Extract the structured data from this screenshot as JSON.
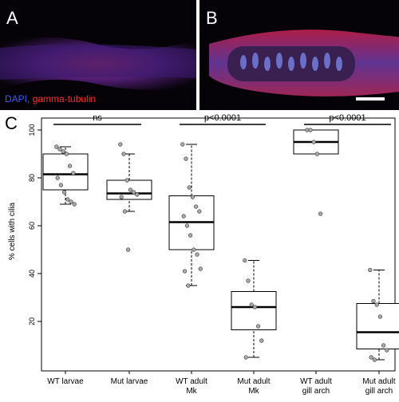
{
  "panels": {
    "a_label": "A",
    "b_label": "B",
    "c_label": "C",
    "stain_dapi": "DAPI,",
    "stain_tubulin": "gamma-tubulin"
  },
  "chart_data": {
    "type": "box",
    "y_label": "% cells with cilia",
    "categories": [
      "WT larvae",
      "Mut larvae",
      "WT adult\nMk",
      "Mut adult\nMk",
      "WT adult\ngill arch",
      "Mut adult\ngill arch"
    ],
    "boxes": [
      {
        "whisker_low": 69,
        "q1": 75,
        "median": 81.5,
        "q3": 90,
        "whisker_high": 93,
        "points": [
          93,
          92,
          91,
          90,
          85,
          82,
          80,
          77,
          74,
          71,
          70,
          69
        ]
      },
      {
        "whisker_low": 66,
        "q1": 71,
        "median": 73.5,
        "q3": 79,
        "whisker_high": 90,
        "points": [
          94,
          90,
          79,
          75,
          74,
          73,
          72,
          66,
          50
        ]
      },
      {
        "whisker_low": 35,
        "q1": 50,
        "median": 61.5,
        "q3": 72.5,
        "whisker_high": 94,
        "points": [
          94,
          88,
          76,
          72,
          68,
          66,
          64,
          60,
          56,
          50,
          48,
          42,
          41,
          35
        ]
      },
      {
        "whisker_low": 5,
        "q1": 16.5,
        "median": 26,
        "q3": 32.5,
        "whisker_high": 45.5,
        "points": [
          45.5,
          37,
          27,
          26,
          18,
          12,
          5
        ]
      },
      {
        "whisker_low": 90,
        "q1": 90,
        "median": 95,
        "q3": 100,
        "whisker_high": 100,
        "points": [
          100,
          100,
          95,
          90,
          65
        ]
      },
      {
        "whisker_low": 4,
        "q1": 8.5,
        "median": 15.5,
        "q3": 27.5,
        "whisker_high": 41.5,
        "points": [
          41.5,
          28.5,
          27,
          22,
          10,
          8,
          5,
          4
        ]
      }
    ],
    "comparisons": [
      {
        "from": 0,
        "to": 1,
        "label": "ns"
      },
      {
        "from": 2,
        "to": 3,
        "label": "p<0.0001"
      },
      {
        "from": 4,
        "to": 5,
        "label": "p<0.0001"
      }
    ],
    "ylim": [
      0,
      105
    ],
    "yticks": [
      20,
      40,
      60,
      80,
      100
    ],
    "point_color": "#aaaaaa"
  }
}
